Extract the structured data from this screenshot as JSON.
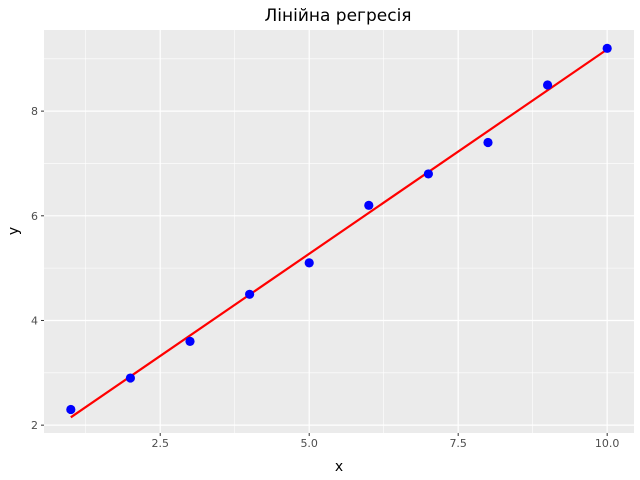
{
  "chart_data": {
    "type": "scatter",
    "title": "Лінійна регресія",
    "xlabel": "x",
    "ylabel": "y",
    "xlim": [
      0.55,
      10.45
    ],
    "ylim": [
      1.85,
      9.55
    ],
    "x_ticks": [
      2.5,
      5.0,
      7.5,
      10.0
    ],
    "x_tick_labels": [
      "2.5",
      "5.0",
      "7.5",
      "10.0"
    ],
    "y_ticks": [
      2,
      4,
      6,
      8
    ],
    "y_tick_labels": [
      "2",
      "4",
      "6",
      "8"
    ],
    "grid": true,
    "legend": "none",
    "series": [
      {
        "kind": "points",
        "color": "#0000ff",
        "x": [
          1,
          2,
          3,
          4,
          5,
          6,
          7,
          8,
          9,
          10
        ],
        "y": [
          2.3,
          2.9,
          3.6,
          4.5,
          5.1,
          6.2,
          6.8,
          7.4,
          8.5,
          9.2
        ]
      },
      {
        "kind": "fit-line",
        "color": "#ff0000",
        "x": [
          1,
          10
        ],
        "y": [
          2.15,
          9.18
        ]
      }
    ]
  }
}
